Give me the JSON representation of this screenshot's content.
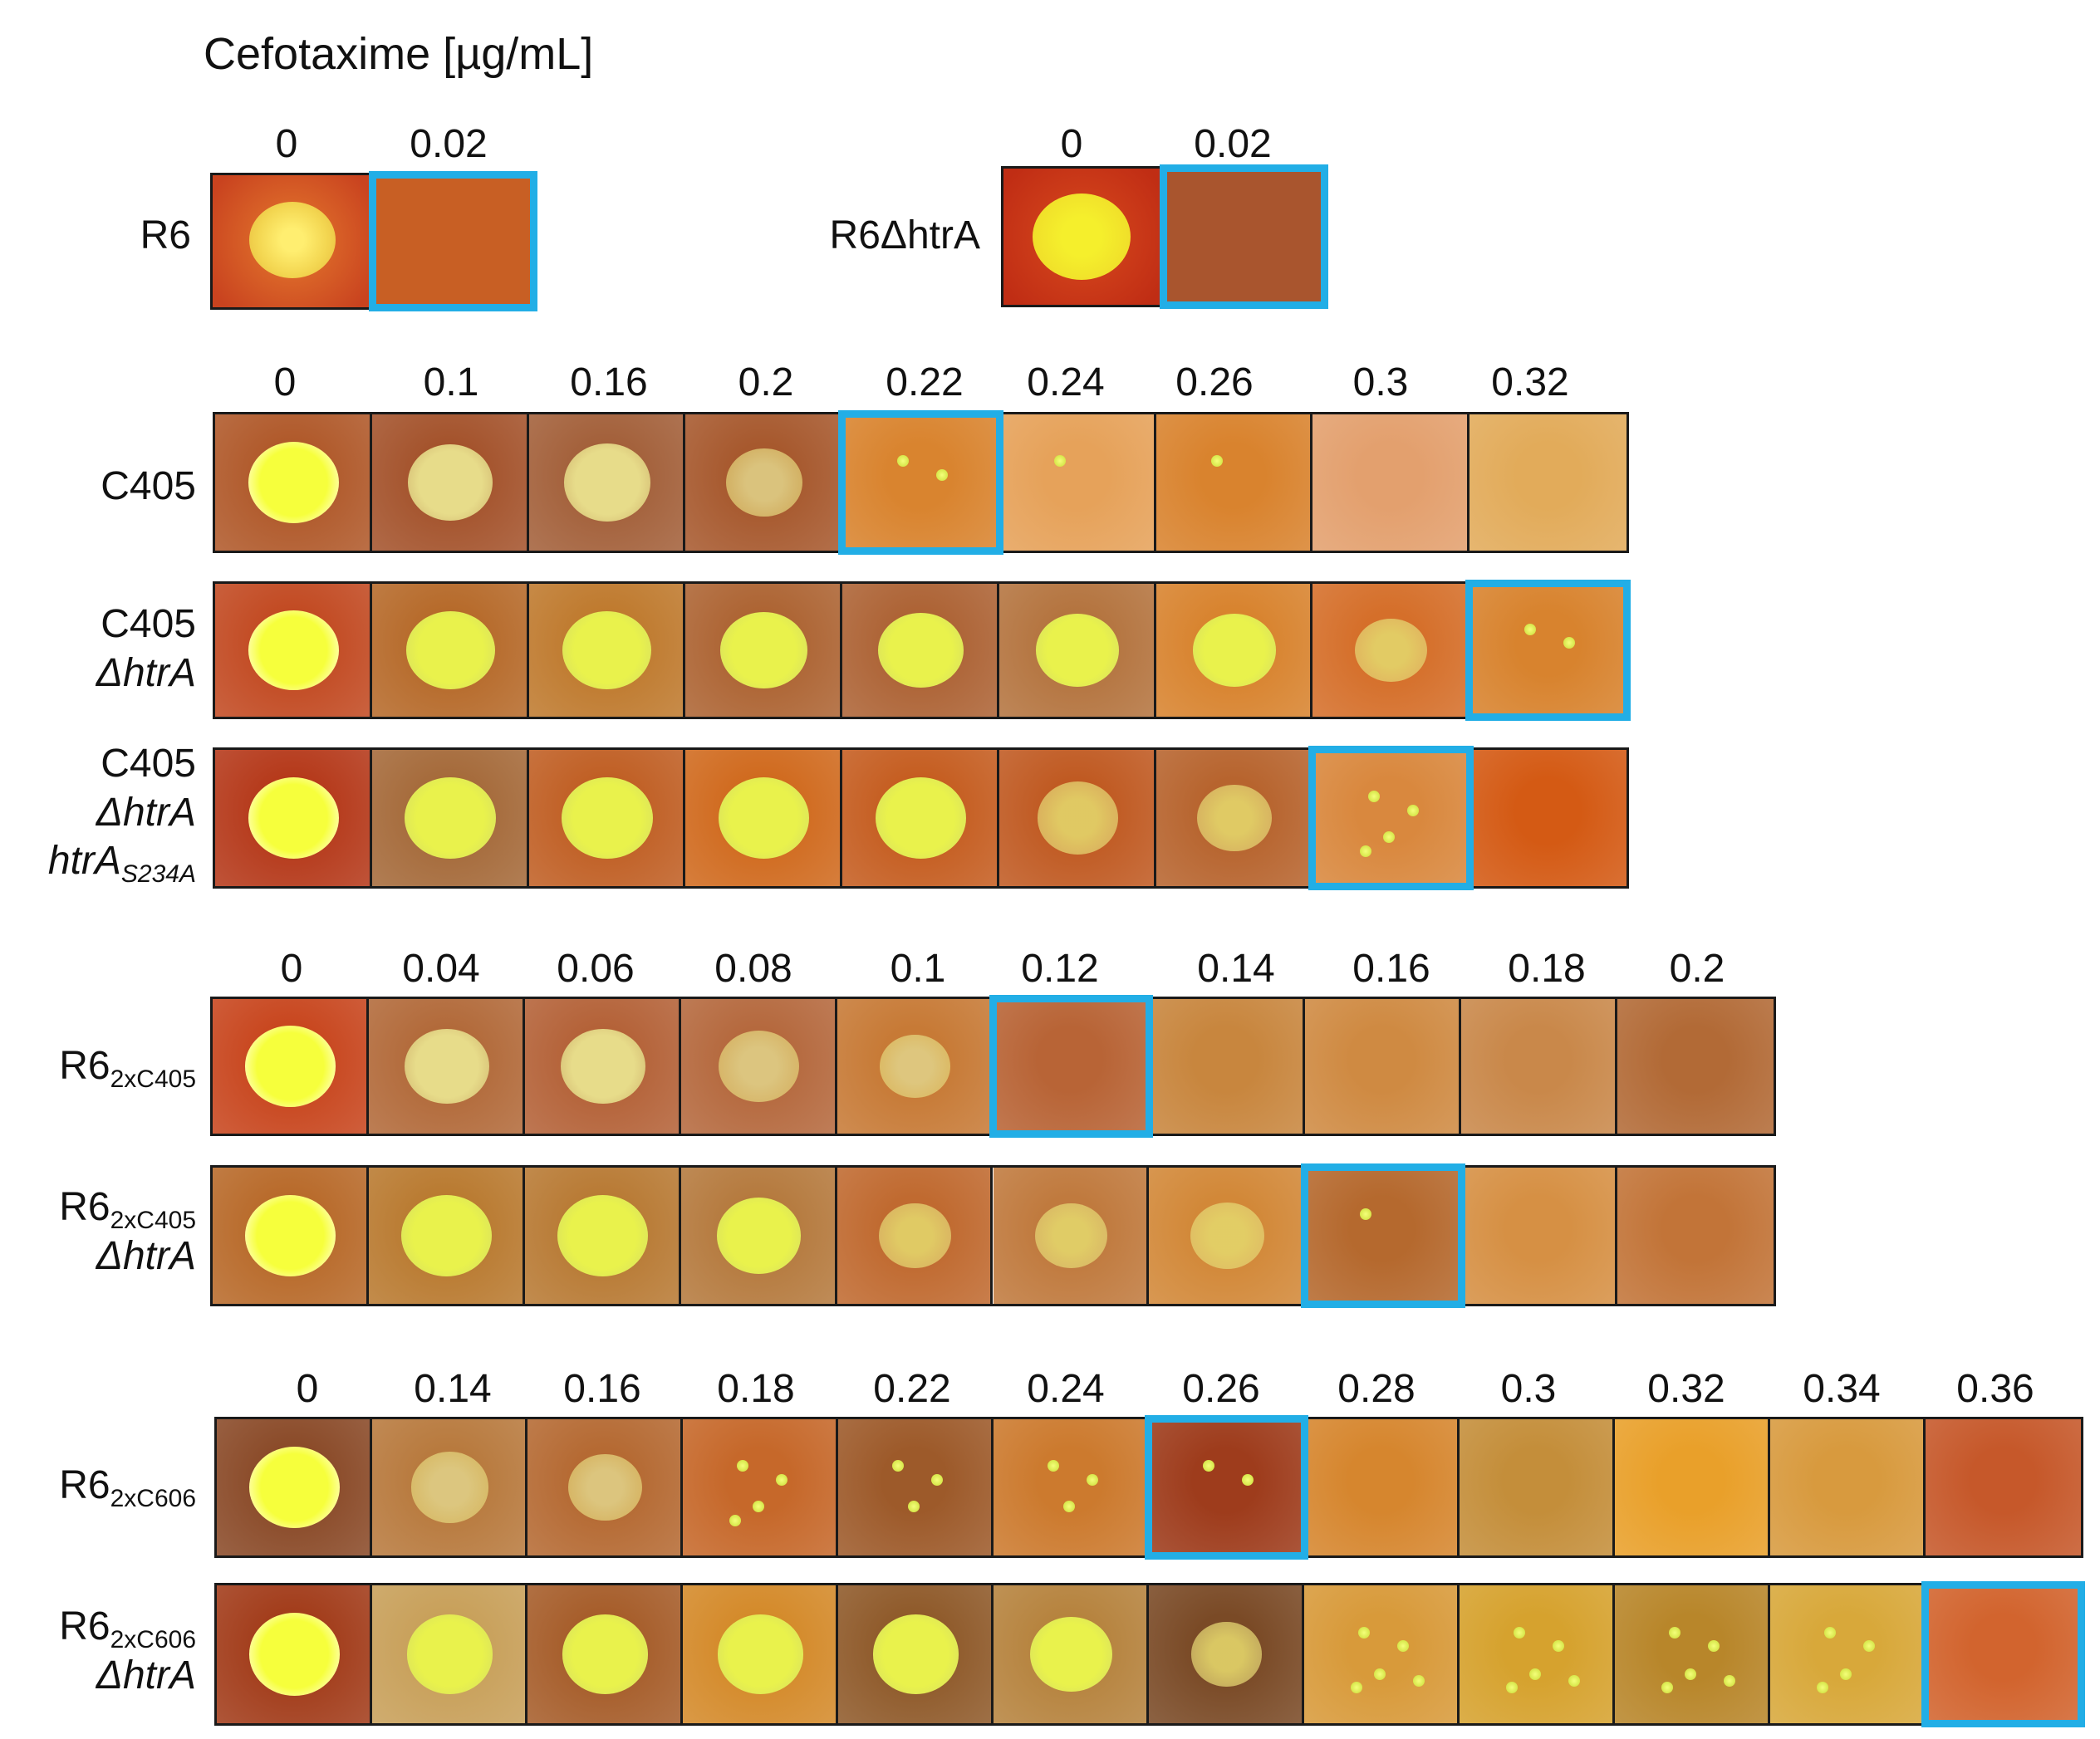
{
  "figure_title": "Cefotaxime [µg/mL]",
  "colors": {
    "highlight": "#22aee6",
    "plate_dark": "#c45a1e",
    "plate_mid": "#d9832e",
    "plate_light": "#e7a25a",
    "spot_bright": "#f2fb4a",
    "spot_pale": "#e6e39a"
  },
  "groups": [
    {
      "concentrations": [
        "0",
        "0.02"
      ],
      "strains": [
        {
          "label": "R6",
          "highlight_concentration": "0.02"
        }
      ]
    },
    {
      "concentrations": [
        "0",
        "0.02"
      ],
      "strains": [
        {
          "label": "R6ΔhtrA",
          "highlight_concentration": "0.02"
        }
      ]
    },
    {
      "concentrations": [
        "0",
        "0.1",
        "0.16",
        "0.2",
        "0.22",
        "0.24",
        "0.26",
        "0.3",
        "0.32"
      ],
      "strains": [
        {
          "label": "C405",
          "highlight_concentration": "0.22"
        },
        {
          "label_line1": "C405",
          "label_line2": "ΔhtrA",
          "highlight_concentration": "0.32"
        },
        {
          "label_line1": "C405",
          "label_line2": "ΔhtrA",
          "label_line3": "htrA",
          "label_line3_sub": "S234A",
          "highlight_concentration": "0.3"
        }
      ]
    },
    {
      "concentrations": [
        "0",
        "0.04",
        "0.06",
        "0.08",
        "0.1",
        "0.12",
        "0.14",
        "0.16",
        "0.18",
        "0.2"
      ],
      "strains": [
        {
          "label": "R6",
          "label_sub": "2xC405",
          "highlight_concentration": "0.12"
        },
        {
          "label": "R6",
          "label_sub": "2xC405",
          "label_line2": "ΔhtrA",
          "highlight_concentration": "0.16"
        }
      ]
    },
    {
      "concentrations": [
        "0",
        "0.14",
        "0.16",
        "0.18",
        "0.22",
        "0.24",
        "0.26",
        "0.28",
        "0.3",
        "0.32",
        "0.34",
        "0.36"
      ],
      "strains": [
        {
          "label": "R6",
          "label_sub": "2xC606",
          "highlight_concentration": "0.26"
        },
        {
          "label": "R6",
          "label_sub": "2xC606",
          "label_line2": "ΔhtrA",
          "highlight_concentration": "0.36"
        }
      ]
    }
  ],
  "growth_description": "relative bacterial lawn size per plate, 0 = no growth, 1 = full spot",
  "growth": {
    "R6": [
      1,
      0
    ],
    "R6_htrA": [
      1,
      0
    ],
    "C405": [
      1,
      0.85,
      0.9,
      0.65,
      0.05,
      0.02,
      0.02,
      0,
      0
    ],
    "C405_htrA": [
      1,
      0.95,
      0.95,
      0.9,
      0.88,
      0.8,
      0.8,
      0.55,
      0.04
    ],
    "C405_htrA_S234A": [
      1,
      1,
      1,
      1,
      1,
      0.75,
      0.6,
      0.1,
      0
    ],
    "R6_2xC405": [
      1,
      0.85,
      0.85,
      0.75,
      0.5,
      0,
      0,
      0,
      0,
      0
    ],
    "R6_2xC405_htrA": [
      1,
      1,
      1,
      0.85,
      0.55,
      0.55,
      0.6,
      0.02,
      0,
      0
    ],
    "R6_2xC606": [
      1,
      0.7,
      0.6,
      0.1,
      0.08,
      0.08,
      0.05,
      0,
      0,
      0,
      0,
      0
    ],
    "R6_2xC606_htrA": [
      1,
      0.9,
      0.9,
      0.9,
      0.9,
      0.8,
      0.5,
      0.12,
      0.12,
      0.12,
      0.1,
      0
    ]
  }
}
